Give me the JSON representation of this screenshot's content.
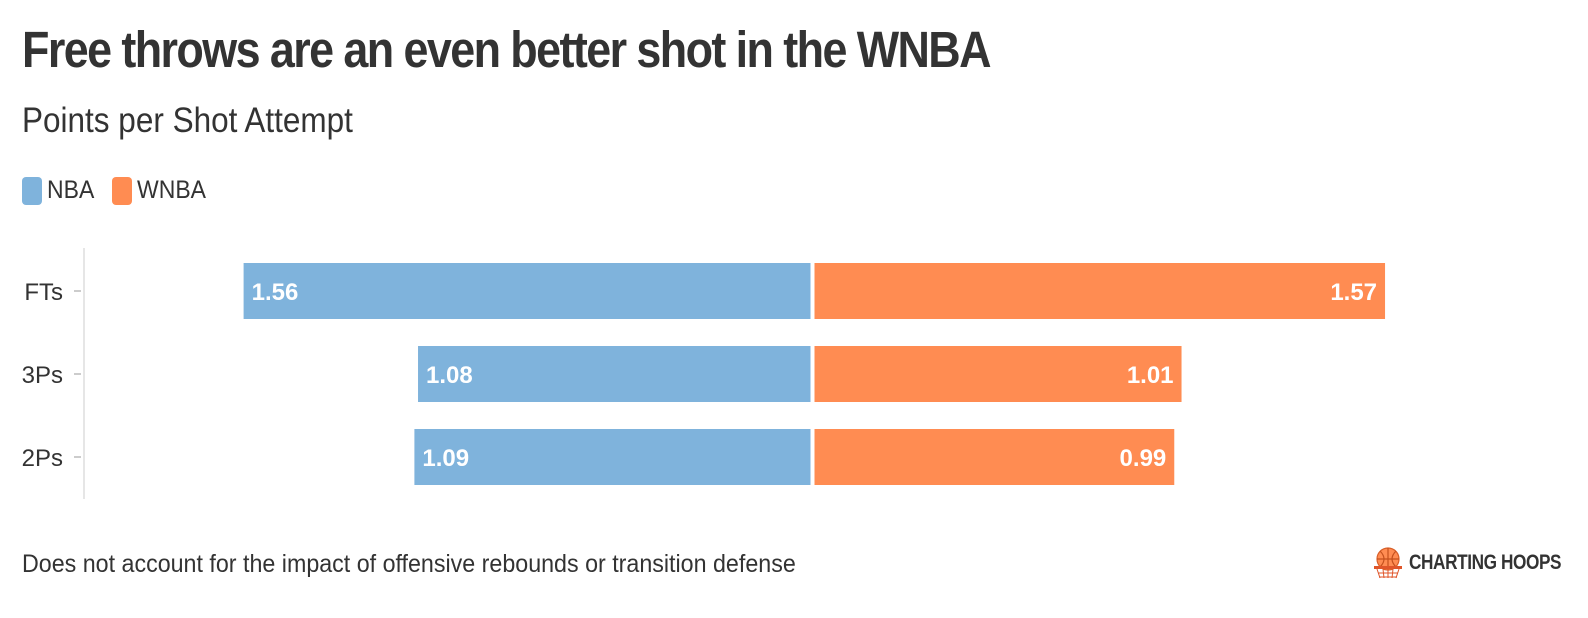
{
  "header": {
    "title": "Free throws are an even better shot in the WNBA",
    "subtitle": "Points per Shot Attempt"
  },
  "legend": {
    "items": [
      {
        "label": "NBA",
        "color": "#7fb3dc"
      },
      {
        "label": "WNBA",
        "color": "#ff8c52"
      }
    ]
  },
  "footer": {
    "note": "Does not account for the impact of offensive rebounds or transition defense",
    "brand": "CHARTING HOOPS",
    "brand_icon": "basketball-hoop-icon"
  },
  "chart_data": {
    "type": "bar",
    "orientation": "horizontal-diverging",
    "categories": [
      "FTs",
      "3Ps",
      "2Ps"
    ],
    "series": [
      {
        "name": "NBA",
        "values": [
          1.56,
          1.08,
          1.09
        ],
        "color": "#7fb3dc"
      },
      {
        "name": "WNBA",
        "values": [
          1.57,
          1.01,
          0.99
        ],
        "color": "#ff8c52"
      }
    ],
    "title": "Free throws are an even better shot in the WNBA",
    "subtitle": "Points per Shot Attempt",
    "data_labels": true,
    "grid": false,
    "legend_position": "top-left"
  }
}
